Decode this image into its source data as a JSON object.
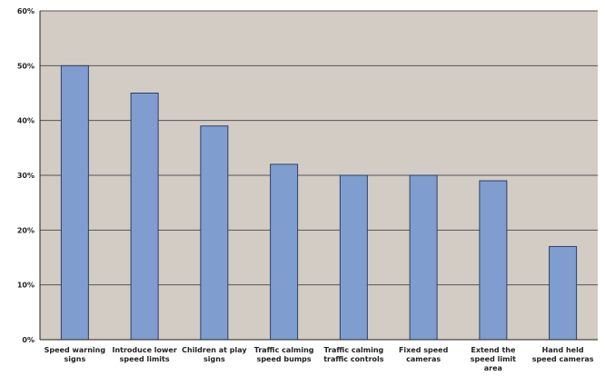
{
  "chart_data": {
    "type": "bar",
    "title": "",
    "xlabel": "",
    "ylabel": "",
    "categories": [
      [
        "Speed warning",
        "signs"
      ],
      [
        "Introduce lower",
        "speed limits"
      ],
      [
        "Children at play",
        "signs"
      ],
      [
        "Traffic calming",
        "speed bumps"
      ],
      [
        "Traffic calming",
        "traffic controls"
      ],
      [
        "Fixed speed",
        "cameras"
      ],
      [
        "Extend the",
        "speed limit",
        "area"
      ],
      [
        "Hand held",
        "speed cameras"
      ]
    ],
    "values": [
      50,
      45,
      39,
      32,
      30,
      30,
      29,
      17
    ],
    "ylim": [
      0,
      60
    ],
    "yticks": [
      0,
      10,
      20,
      30,
      40,
      50,
      60
    ],
    "ytick_labels": [
      "0%",
      "10%",
      "20%",
      "30%",
      "40%",
      "50%",
      "60%"
    ],
    "grid": true,
    "legend": "none",
    "colors": {
      "plot_background": "#d2ccc4",
      "bar_fill": "#7f9ecf",
      "bar_stroke": "#2e3f66",
      "grid": "#555555"
    }
  }
}
